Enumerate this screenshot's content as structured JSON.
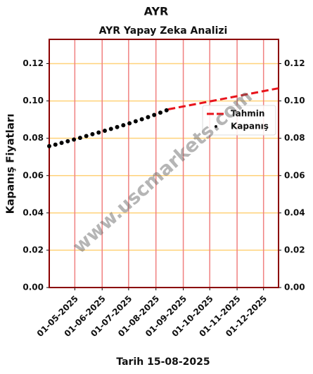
{
  "chart_data": {
    "type": "scatter",
    "title": "AYR",
    "subtitle": "AYR Yapay Zeka Analizi",
    "ylabel": "Kapanış Fiyatları",
    "xlabel": "Tarih 15-08-2025",
    "watermark": "www.uscmarkets.com",
    "xlim": [
      "2025-04-02",
      "2025-12-18"
    ],
    "xticks": [
      {
        "value": "2025-05-01",
        "label": "01-05-2025"
      },
      {
        "value": "2025-06-01",
        "label": "01-06-2025"
      },
      {
        "value": "2025-07-01",
        "label": "01-07-2025"
      },
      {
        "value": "2025-08-01",
        "label": "01-08-2025"
      },
      {
        "value": "2025-09-01",
        "label": "01-09-2025"
      },
      {
        "value": "2025-10-01",
        "label": "01-10-2025"
      },
      {
        "value": "2025-11-01",
        "label": "01-11-2025"
      },
      {
        "value": "2025-12-01",
        "label": "01-12-2025"
      }
    ],
    "ylim": [
      0,
      0.133
    ],
    "yticks": [
      {
        "value": 0,
        "label": "0.00"
      },
      0.02,
      0.04,
      0.06,
      0.08,
      {
        "value": 0.1,
        "label": "0.10"
      },
      0.12
    ],
    "grid": true,
    "legend": "right",
    "series": [
      {
        "name": "Tahmin",
        "color": "#e8141c",
        "style": "dashed",
        "x": [
          "2025-08-15",
          "2025-12-18"
        ],
        "values": [
          0.0955,
          0.1068
        ]
      },
      {
        "name": "Kapanış",
        "color": "#000000",
        "style": "dots",
        "x": [
          "2025-04-02",
          "2025-04-09",
          "2025-04-16",
          "2025-04-23",
          "2025-04-30",
          "2025-05-07",
          "2025-05-14",
          "2025-05-21",
          "2025-05-28",
          "2025-06-04",
          "2025-06-11",
          "2025-06-18",
          "2025-06-25",
          "2025-07-02",
          "2025-07-09",
          "2025-07-16",
          "2025-07-23",
          "2025-07-30",
          "2025-08-06",
          "2025-08-13"
        ],
        "values": [
          0.0758,
          0.0766,
          0.0775,
          0.0784,
          0.0793,
          0.0802,
          0.0812,
          0.0822,
          0.0831,
          0.084,
          0.085,
          0.086,
          0.087,
          0.088,
          0.0891,
          0.0902,
          0.0913,
          0.0925,
          0.0937,
          0.095
        ]
      }
    ]
  }
}
